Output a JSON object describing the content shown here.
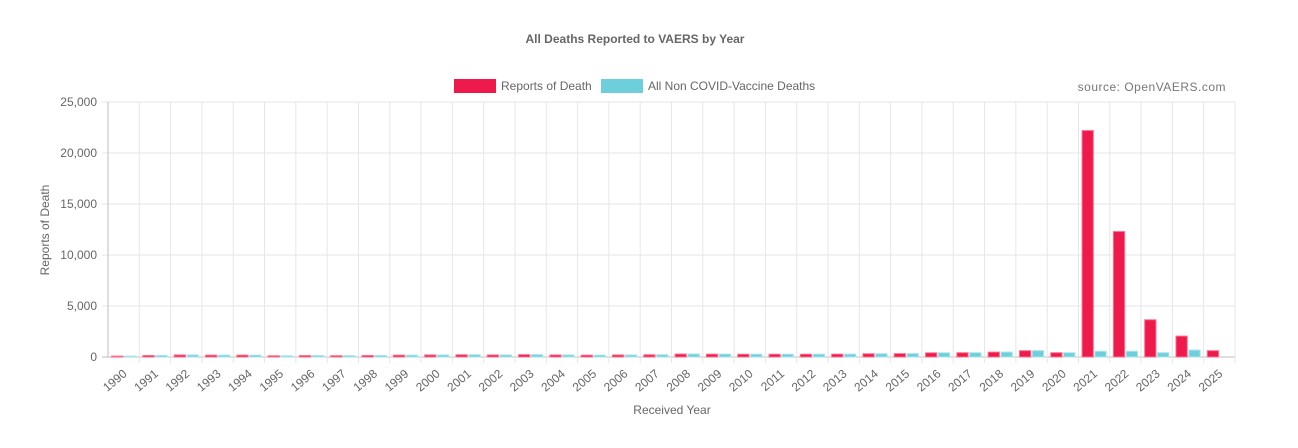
{
  "chart_data": {
    "type": "bar",
    "title": "All Deaths Reported to VAERS by Year",
    "source": "source: OpenVAERS.com",
    "xlabel": "Received Year",
    "ylabel": "Reports of Death",
    "ylim": [
      0,
      25000
    ],
    "yticks": [
      0,
      5000,
      10000,
      15000,
      20000,
      25000
    ],
    "ytick_labels": [
      "0",
      "5,000",
      "10,000",
      "15,000",
      "20,000",
      "25,000"
    ],
    "grid": true,
    "legend_position": "top-center",
    "categories": [
      "1990",
      "1991",
      "1992",
      "1993",
      "1994",
      "1995",
      "1996",
      "1997",
      "1998",
      "1999",
      "2000",
      "2001",
      "2002",
      "2003",
      "2004",
      "2005",
      "2006",
      "2007",
      "2008",
      "2009",
      "2010",
      "2011",
      "2012",
      "2013",
      "2014",
      "2015",
      "2016",
      "2017",
      "2018",
      "2019",
      "2020",
      "2021",
      "2022",
      "2023",
      "2024",
      "2025"
    ],
    "series": [
      {
        "name": "Reports of Death",
        "color": "#ee1a4b",
        "values": [
          90,
          150,
          200,
          180,
          180,
          120,
          140,
          130,
          150,
          180,
          200,
          220,
          200,
          230,
          200,
          180,
          200,
          220,
          290,
          280,
          270,
          270,
          270,
          280,
          320,
          330,
          410,
          420,
          480,
          620,
          420,
          22200,
          12300,
          3650,
          2050,
          620
        ]
      },
      {
        "name": "All Non COVID-Vaccine Deaths",
        "color": "#6ccfdb",
        "values": [
          90,
          150,
          200,
          180,
          180,
          120,
          140,
          130,
          150,
          180,
          200,
          220,
          200,
          230,
          200,
          180,
          200,
          220,
          290,
          280,
          270,
          270,
          270,
          280,
          320,
          330,
          410,
          420,
          480,
          620,
          420,
          560,
          560,
          420,
          680,
          0
        ]
      }
    ]
  }
}
